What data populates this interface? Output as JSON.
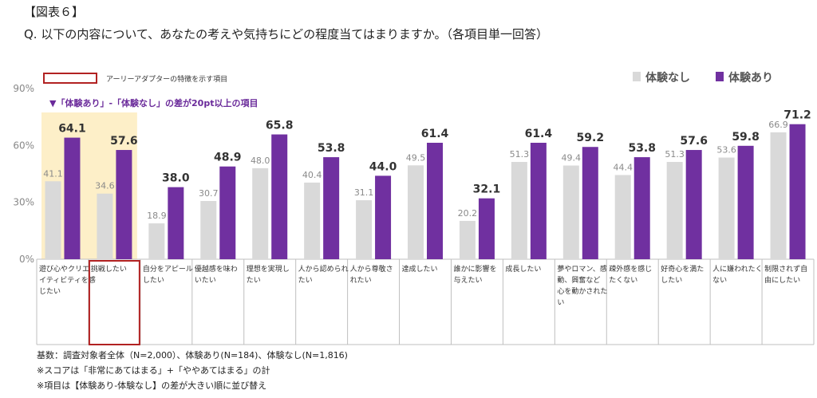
{
  "figure_label": "【図表６】",
  "question": "Q. 以下の内容について、あなたの考えや気持ちにどの程度当てはまりますか。（各項目単一回答）",
  "legend": {
    "early_adopter_box_label": "アーリーアダプターの特徴を示す項目",
    "diff_note": "▼「体験あり」-「体験なし」の差が20pt以上の項目"
  },
  "colors": {
    "no_experience": "#d9d9d9",
    "experience": "#7030a0",
    "highlight_bg": "#fdefc8",
    "box_border": "#b22222"
  },
  "chart_data": {
    "type": "bar",
    "ylim": [
      0,
      90
    ],
    "yticks": [
      "0%",
      "30%",
      "60%",
      "90%"
    ],
    "ytick_values": [
      0,
      30,
      60,
      90
    ],
    "categories": [
      [
        "遊び心やクリエ",
        "イティビティを感",
        "じたい"
      ],
      [
        "挑戦したい"
      ],
      [
        "自分をアピール",
        "したい"
      ],
      [
        "優越感を味わ",
        "いたい"
      ],
      [
        "理想を実現し",
        "たい"
      ],
      [
        "人から認められ",
        "たい"
      ],
      [
        "人から尊敬さ",
        "れたい"
      ],
      [
        "達成したい"
      ],
      [
        "誰かに影響を",
        "与えたい"
      ],
      [
        "成長したい"
      ],
      [
        "夢やロマン、感",
        "動、興奮など",
        "心を動かされた",
        "い"
      ],
      [
        "疎外感を感じ",
        "たくない"
      ],
      [
        "好奇心を満た",
        "したい"
      ],
      [
        "人に嫌われたく",
        "ない"
      ],
      [
        "制限されず自",
        "由にしたい"
      ]
    ],
    "series": [
      {
        "name": "体験なし",
        "values": [
          41.1,
          34.6,
          18.9,
          30.7,
          48.0,
          40.4,
          31.1,
          49.5,
          20.2,
          51.3,
          49.4,
          44.4,
          51.3,
          53.6,
          66.9
        ],
        "labels": [
          "41.1",
          "34.6",
          "18.9",
          "30.7",
          "48.0",
          "40.4",
          "31.1",
          "49.5",
          "20.2",
          "51.3",
          "49.4",
          "44.4",
          "51.3",
          "53.6",
          "66.9"
        ]
      },
      {
        "name": "体験あり",
        "values": [
          64.1,
          57.6,
          38.0,
          48.9,
          65.8,
          53.8,
          44.0,
          61.4,
          32.1,
          61.4,
          59.2,
          53.8,
          57.6,
          59.8,
          71.2
        ],
        "labels": [
          "64.1",
          "57.6",
          "38.0",
          "48.9",
          "65.8",
          "53.8",
          "44.0",
          "61.4",
          "32.1",
          "61.4",
          "59.2",
          "53.8",
          "57.6",
          "59.8",
          "71.2"
        ]
      }
    ],
    "highlighted_categories": [
      0,
      1
    ],
    "boxed_category": 1
  },
  "footnotes": [
    "基数：調査対象者全体（N=2,000）、体験あり(N=184)、体験なし(N=1,816)",
    "※スコアは「非常にあてはまる」+「ややあてはまる」の計",
    "※項目は【体験あり-体験なし】の差が大きい順に並び替え"
  ]
}
